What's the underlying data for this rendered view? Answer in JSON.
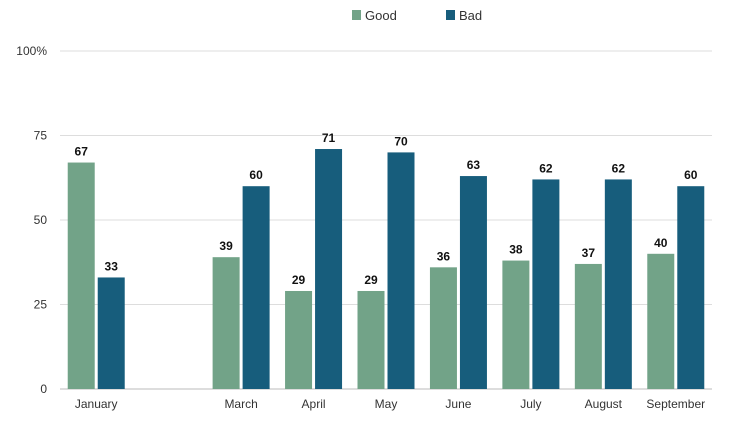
{
  "chart_data": {
    "type": "bar",
    "categories": [
      "January",
      "",
      "March",
      "April",
      "May",
      "June",
      "July",
      "August",
      "September"
    ],
    "series": [
      {
        "name": "Good",
        "color": "#72a388",
        "values": [
          67,
          null,
          39,
          29,
          29,
          36,
          38,
          37,
          40
        ]
      },
      {
        "name": "Bad",
        "color": "#175d7c",
        "values": [
          33,
          null,
          60,
          71,
          70,
          63,
          62,
          62,
          60
        ]
      }
    ],
    "title": "",
    "xlabel": "",
    "ylabel": "",
    "ylim": [
      0,
      100
    ],
    "yticks": [
      "0",
      "25",
      "50",
      "75",
      "100%"
    ],
    "ytick_values": [
      0,
      25,
      50,
      75,
      100
    ],
    "grid": true,
    "legend": "top-center",
    "data_labels": true
  }
}
